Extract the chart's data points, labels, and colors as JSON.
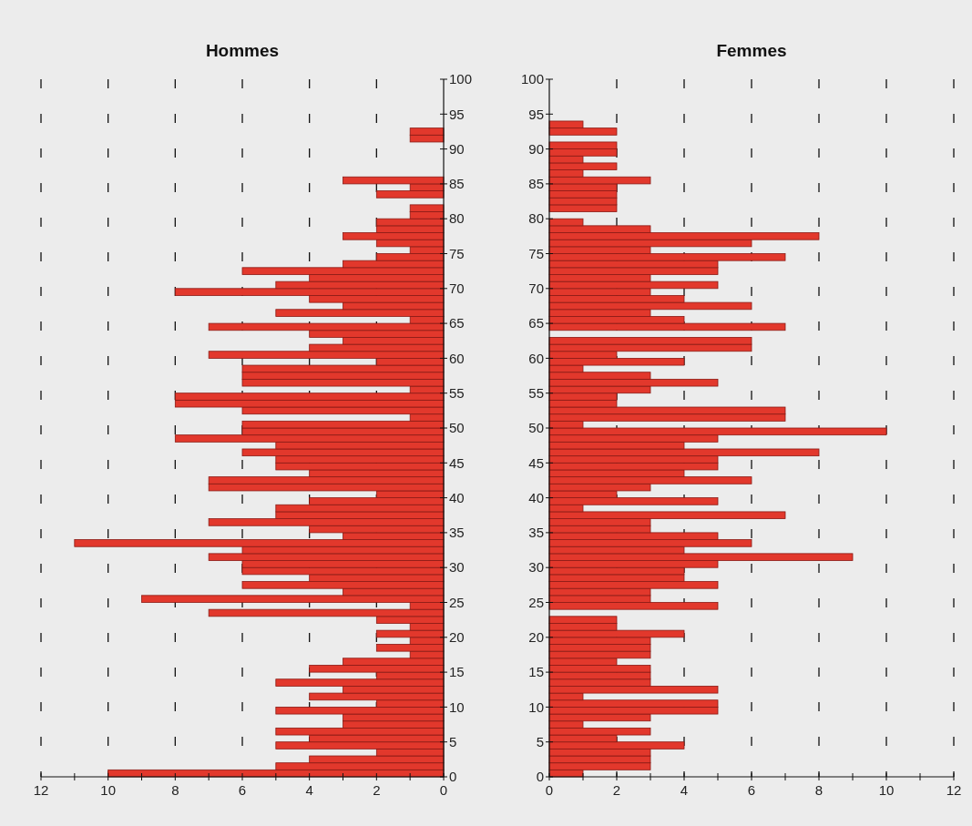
{
  "chart_data": [
    {
      "type": "bar",
      "title": "Hommes",
      "orientation": "horizontal",
      "color": "#e2382c",
      "grid": "x",
      "x": [
        0,
        1,
        2,
        3,
        4,
        5,
        6,
        7,
        8,
        9,
        10,
        11,
        12,
        13,
        14,
        15,
        16,
        17,
        18,
        19,
        20,
        21,
        22,
        23,
        24,
        25,
        26,
        27,
        28,
        29,
        30,
        31,
        32,
        33,
        34,
        35,
        36,
        37,
        38,
        39,
        40,
        41,
        42,
        43,
        44,
        45,
        46,
        47,
        48,
        49,
        50,
        51,
        52,
        53,
        54,
        55,
        56,
        57,
        58,
        59,
        60,
        61,
        62,
        63,
        64,
        65,
        66,
        67,
        68,
        69,
        70,
        71,
        72,
        73,
        74,
        75,
        76,
        77,
        78,
        79,
        80,
        81,
        82,
        83,
        84,
        85,
        86,
        87,
        88,
        89,
        90,
        91,
        92,
        93
      ],
      "values": [
        10,
        5,
        4,
        2,
        5,
        4,
        5,
        3,
        3,
        5,
        2,
        4,
        3,
        5,
        2,
        4,
        3,
        1,
        2,
        1,
        2,
        1,
        2,
        7,
        1,
        9,
        3,
        6,
        4,
        6,
        6,
        7,
        6,
        11,
        3,
        4,
        7,
        5,
        5,
        4,
        2,
        7,
        7,
        4,
        5,
        5,
        6,
        5,
        8,
        6,
        6,
        1,
        6,
        8,
        8,
        1,
        6,
        6,
        6,
        2,
        7,
        4,
        3,
        4,
        7,
        1,
        5,
        3,
        4,
        8,
        5,
        4,
        6,
        3,
        2,
        1,
        2,
        3,
        2,
        2,
        1,
        1,
        0,
        2,
        1,
        3,
        0,
        0,
        0,
        0,
        0,
        1,
        1,
        0
      ],
      "xlim": [
        12,
        0
      ],
      "xticks": [
        12,
        {
          "value": 11,
          "label": null
        },
        10,
        {
          "value": 9,
          "label": null
        },
        8,
        {
          "value": 7,
          "label": null
        },
        6,
        {
          "value": 5,
          "label": null
        },
        4,
        {
          "value": 3,
          "label": null
        },
        2,
        {
          "value": 1,
          "label": null
        },
        0
      ],
      "ylim": [
        0,
        100
      ],
      "yticks": [
        0,
        5,
        10,
        15,
        20,
        25,
        30,
        35,
        40,
        45,
        50,
        55,
        60,
        65,
        70,
        75,
        80,
        85,
        90,
        95,
        100
      ]
    },
    {
      "type": "bar",
      "title": "Femmes",
      "orientation": "horizontal",
      "color": "#e2382c",
      "grid": "x",
      "x": [
        0,
        1,
        2,
        3,
        4,
        5,
        6,
        7,
        8,
        9,
        10,
        11,
        12,
        13,
        14,
        15,
        16,
        17,
        18,
        19,
        20,
        21,
        22,
        23,
        24,
        25,
        26,
        27,
        28,
        29,
        30,
        31,
        32,
        33,
        34,
        35,
        36,
        37,
        38,
        39,
        40,
        41,
        42,
        43,
        44,
        45,
        46,
        47,
        48,
        49,
        50,
        51,
        52,
        53,
        54,
        55,
        56,
        57,
        58,
        59,
        60,
        61,
        62,
        63,
        64,
        65,
        66,
        67,
        68,
        69,
        70,
        71,
        72,
        73,
        74,
        75,
        76,
        77,
        78,
        79,
        80,
        81,
        82,
        83,
        84,
        85,
        86,
        87,
        88,
        89,
        90,
        91,
        92,
        93
      ],
      "values": [
        1,
        3,
        3,
        3,
        4,
        2,
        3,
        1,
        3,
        5,
        5,
        1,
        5,
        3,
        3,
        3,
        2,
        3,
        3,
        3,
        4,
        2,
        2,
        0,
        5,
        3,
        3,
        5,
        4,
        4,
        5,
        9,
        4,
        6,
        5,
        3,
        3,
        7,
        1,
        5,
        2,
        3,
        6,
        4,
        5,
        5,
        8,
        4,
        5,
        10,
        1,
        7,
        7,
        2,
        2,
        3,
        5,
        3,
        1,
        4,
        2,
        6,
        6,
        0,
        7,
        4,
        3,
        6,
        4,
        3,
        5,
        3,
        5,
        5,
        7,
        3,
        6,
        8,
        3,
        1,
        0,
        2,
        2,
        2,
        2,
        3,
        1,
        2,
        1,
        2,
        2,
        0,
        2,
        1
      ],
      "xlim": [
        0,
        12
      ],
      "xticks": [
        0,
        {
          "value": 1,
          "label": null
        },
        2,
        {
          "value": 3,
          "label": null
        },
        4,
        {
          "value": 5,
          "label": null
        },
        6,
        {
          "value": 7,
          "label": null
        },
        8,
        {
          "value": 9,
          "label": null
        },
        10,
        {
          "value": 11,
          "label": null
        },
        12
      ],
      "ylim": [
        0,
        100
      ],
      "yticks": [
        0,
        5,
        10,
        15,
        20,
        25,
        30,
        35,
        40,
        45,
        50,
        55,
        60,
        65,
        70,
        75,
        80,
        85,
        90,
        95,
        100
      ]
    }
  ]
}
